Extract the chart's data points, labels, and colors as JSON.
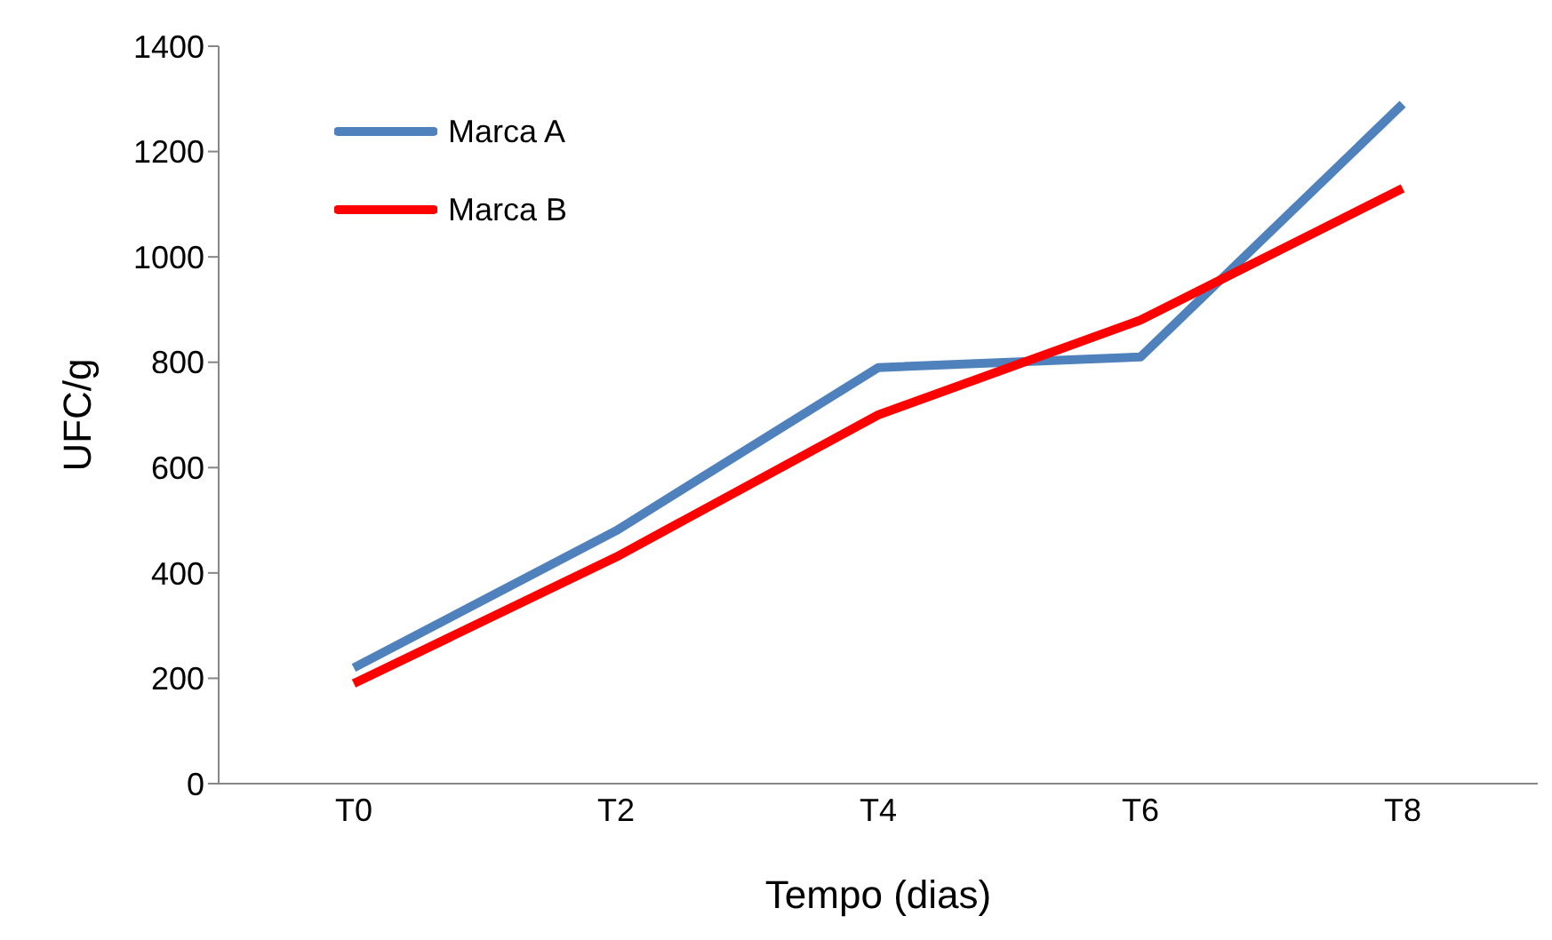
{
  "chart_data": {
    "type": "line",
    "xlabel": "Tempo (dias)",
    "ylabel": "UFC/g",
    "categories": [
      "T0",
      "T2",
      "T4",
      "T6",
      "T8"
    ],
    "series": [
      {
        "name": "Marca A",
        "color": "#4f81bd",
        "values": [
          220,
          480,
          790,
          810,
          1290
        ]
      },
      {
        "name": "Marca B",
        "color": "#ff0000",
        "values": [
          190,
          430,
          700,
          880,
          1130
        ]
      }
    ],
    "ylim": [
      0,
      1400
    ],
    "yticks": [
      0,
      200,
      400,
      600,
      800,
      1000,
      1200,
      1400
    ],
    "grid": false,
    "legend": "top left",
    "marker": "none",
    "line_style": "solid"
  }
}
